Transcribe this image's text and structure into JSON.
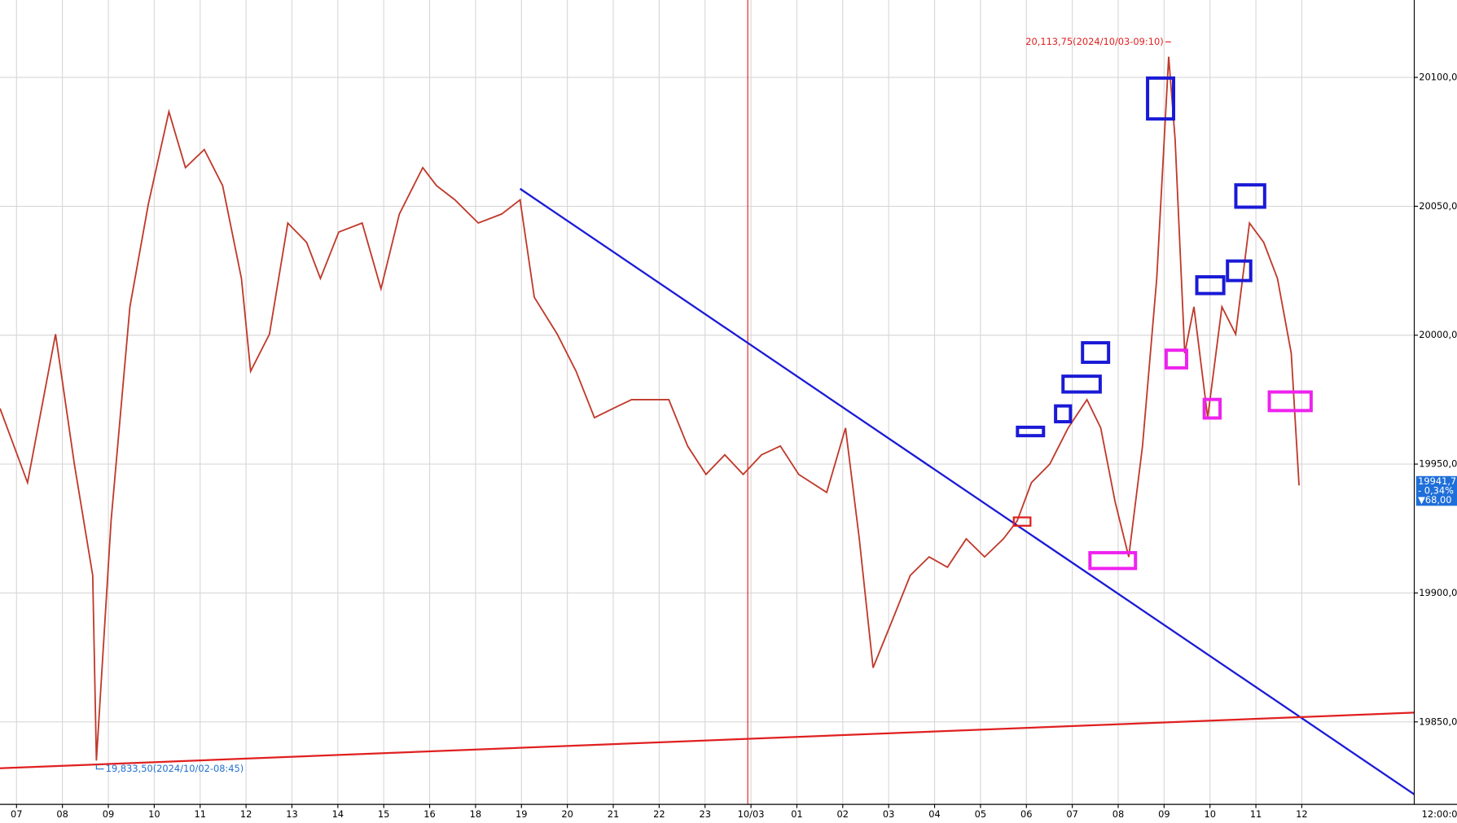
{
  "chart_data": {
    "type": "line",
    "xlim": [
      -0.36,
      30.45
    ],
    "ylim": [
      19818,
      20130
    ],
    "xticks": [
      {
        "value": 0,
        "label": "07"
      },
      {
        "value": 1,
        "label": "08"
      },
      {
        "value": 2,
        "label": "09"
      },
      {
        "value": 3,
        "label": "10"
      },
      {
        "value": 4,
        "label": "11"
      },
      {
        "value": 5,
        "label": "12"
      },
      {
        "value": 6,
        "label": "13"
      },
      {
        "value": 7,
        "label": "14"
      },
      {
        "value": 8,
        "label": "15"
      },
      {
        "value": 9,
        "label": "16"
      },
      {
        "value": 10,
        "label": "18"
      },
      {
        "value": 11,
        "label": "19"
      },
      {
        "value": 12,
        "label": "20"
      },
      {
        "value": 13,
        "label": "21"
      },
      {
        "value": 14,
        "label": "22"
      },
      {
        "value": 15,
        "label": "23"
      },
      {
        "value": 16,
        "label": "10/03"
      },
      {
        "value": 17,
        "label": "01"
      },
      {
        "value": 18,
        "label": "02"
      },
      {
        "value": 19,
        "label": "03"
      },
      {
        "value": 20,
        "label": "04"
      },
      {
        "value": 21,
        "label": "05"
      },
      {
        "value": 22,
        "label": "06"
      },
      {
        "value": 23,
        "label": "07"
      },
      {
        "value": 24,
        "label": "08"
      },
      {
        "value": 25,
        "label": "09"
      },
      {
        "value": 26,
        "label": "10"
      },
      {
        "value": 27,
        "label": "11"
      },
      {
        "value": 28,
        "label": "12"
      }
    ],
    "yticks": [
      {
        "value": 19850,
        "label": "19850,00"
      },
      {
        "value": 19900,
        "label": "19900,00"
      },
      {
        "value": 19950,
        "label": "19950,00"
      },
      {
        "value": 20000,
        "label": "20000,00"
      },
      {
        "value": 20050,
        "label": "20050,00"
      },
      {
        "value": 20100,
        "label": "20100,00"
      }
    ],
    "grid": true,
    "x": [
      -0.36,
      0.24,
      0.85,
      1.26,
      1.66,
      1.74,
      2.06,
      2.47,
      2.87,
      3.32,
      3.68,
      4.09,
      4.49,
      4.9,
      5.1,
      5.51,
      5.91,
      6.32,
      6.62,
      7.02,
      7.53,
      7.94,
      8.34,
      8.85,
      9.15,
      9.55,
      10.06,
      10.57,
      10.97,
      11.28,
      11.78,
      12.19,
      12.59,
      13,
      13.4,
      13.81,
      14.21,
      14.62,
      15.02,
      15.43,
      15.83,
      16.23,
      16.64,
      17.04,
      17.65,
      18.06,
      18.36,
      18.66,
      19.07,
      19.47,
      19.88,
      20.28,
      20.69,
      21.09,
      21.5,
      21.8,
      22.11,
      22.51,
      22.91,
      23.32,
      23.62,
      23.93,
      24.23,
      24.53,
      24.84,
      25.1,
      25.24,
      25.45,
      25.65,
      25.95,
      26.26,
      26.56,
      26.86,
      27.17,
      27.47,
      27.77,
      27.94
    ],
    "series": [
      {
        "color": "#c0392b",
        "values": [
          19971.6,
          19942.8,
          20000.4,
          19950,
          19906.8,
          19835,
          19928,
          20011,
          20050.7,
          20086.7,
          20065,
          20072,
          20058,
          20022,
          19986,
          20000.4,
          20043.5,
          20036,
          20022,
          20040,
          20043.5,
          20018,
          20047,
          20065,
          20058,
          20052.5,
          20043.5,
          20047,
          20052.5,
          20014.7,
          20000.4,
          19986,
          19968,
          19971.6,
          19975,
          19975,
          19975,
          19957,
          19946,
          19953.6,
          19946,
          19953.6,
          19957,
          19946,
          19939,
          19964,
          19921,
          19871,
          19889,
          19906.8,
          19914,
          19910,
          19921,
          19914,
          19921,
          19928,
          19942.8,
          19950,
          19964,
          19975,
          19964,
          19935.6,
          19914,
          19957,
          20022,
          20108,
          20076,
          19993,
          20011,
          19968,
          20011,
          20000.4,
          20043.5,
          20036,
          20022,
          19993,
          19941.75
        ]
      }
    ],
    "trendlines": [
      {
        "color": "#1a1ad6",
        "points": [
          [
            10.97,
            20056.8
          ],
          [
            30.45,
            19821.9
          ]
        ]
      },
      {
        "color": "#e02020",
        "points": [
          [
            -0.36,
            19832
          ],
          [
            30.45,
            19853.6
          ]
        ]
      }
    ],
    "vline": {
      "color": "#e02020",
      "x": 15.93
    },
    "annotations": [
      {
        "text": "20,113,75(2024/10/03-09:10)",
        "x": 25.15,
        "y": 20113.75,
        "color": "#e02020"
      },
      {
        "text": "19,833,50(2024/10/02-08:45)",
        "x": 1.74,
        "y": 19833.5,
        "color": "#2070d0"
      }
    ],
    "last_price": {
      "value": 19941.75,
      "label": "19941,75",
      "change": "- 0,34%",
      "diff": "▼68,00"
    },
    "time_label": "12:00:00"
  }
}
